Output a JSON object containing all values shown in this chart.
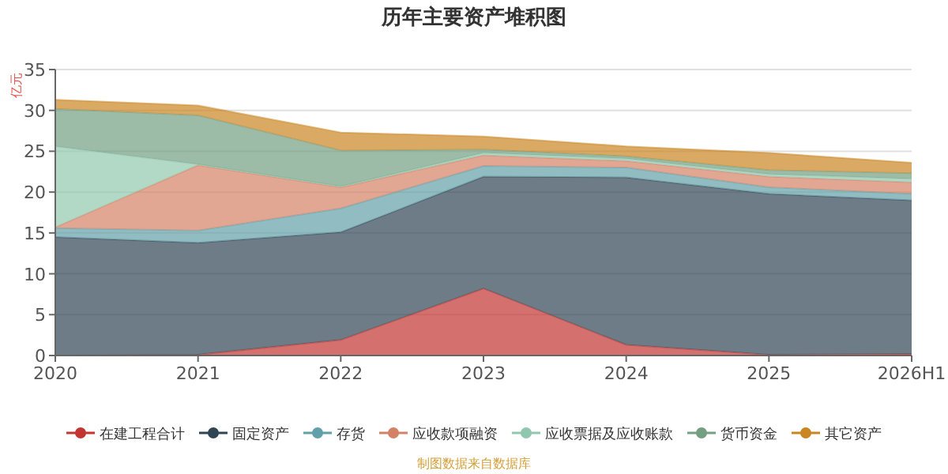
{
  "chart_data": {
    "type": "area",
    "title": "历年主要资产堆积图",
    "ylabel": "亿元",
    "stacked": true,
    "categories": [
      "2020",
      "2021",
      "2022",
      "2023",
      "2024",
      "2025",
      "2026H1"
    ],
    "series": [
      {
        "name": "在建工程合计",
        "color": "#c23531",
        "values": [
          0,
          0.1,
          1.9,
          8.2,
          1.3,
          0.1,
          0.2
        ]
      },
      {
        "name": "固定资产",
        "color": "#2f4554",
        "values": [
          14.5,
          13.7,
          13.2,
          13.7,
          20.5,
          19.7,
          18.8
        ]
      },
      {
        "name": "存货",
        "color": "#61a0a8",
        "values": [
          1.1,
          1.5,
          2.9,
          1.3,
          1.2,
          0.8,
          0.8
        ]
      },
      {
        "name": "应收款项融资",
        "color": "#d48265",
        "values": [
          0.1,
          8.0,
          2.6,
          1.3,
          0.8,
          1.3,
          1.4
        ]
      },
      {
        "name": "应收票据及应收账款",
        "color": "#91c7ae",
        "values": [
          9.9,
          0.1,
          0.1,
          0.3,
          0.3,
          0.3,
          0.4
        ]
      },
      {
        "name": "货币资金",
        "color": "#749f83",
        "values": [
          4.6,
          6.0,
          4.4,
          0.4,
          0.3,
          0.5,
          0.7
        ]
      },
      {
        "name": "其它资产",
        "color": "#ca8622",
        "values": [
          1.1,
          1.2,
          2.2,
          1.6,
          1.2,
          2.1,
          1.3
        ]
      }
    ],
    "ylim": [
      0,
      35
    ],
    "yticks": [
      0,
      5,
      10,
      15,
      20,
      25,
      30,
      35
    ],
    "grid": "y",
    "legend": "bottom",
    "annotations": [
      "制图数据来自数据库"
    ]
  }
}
